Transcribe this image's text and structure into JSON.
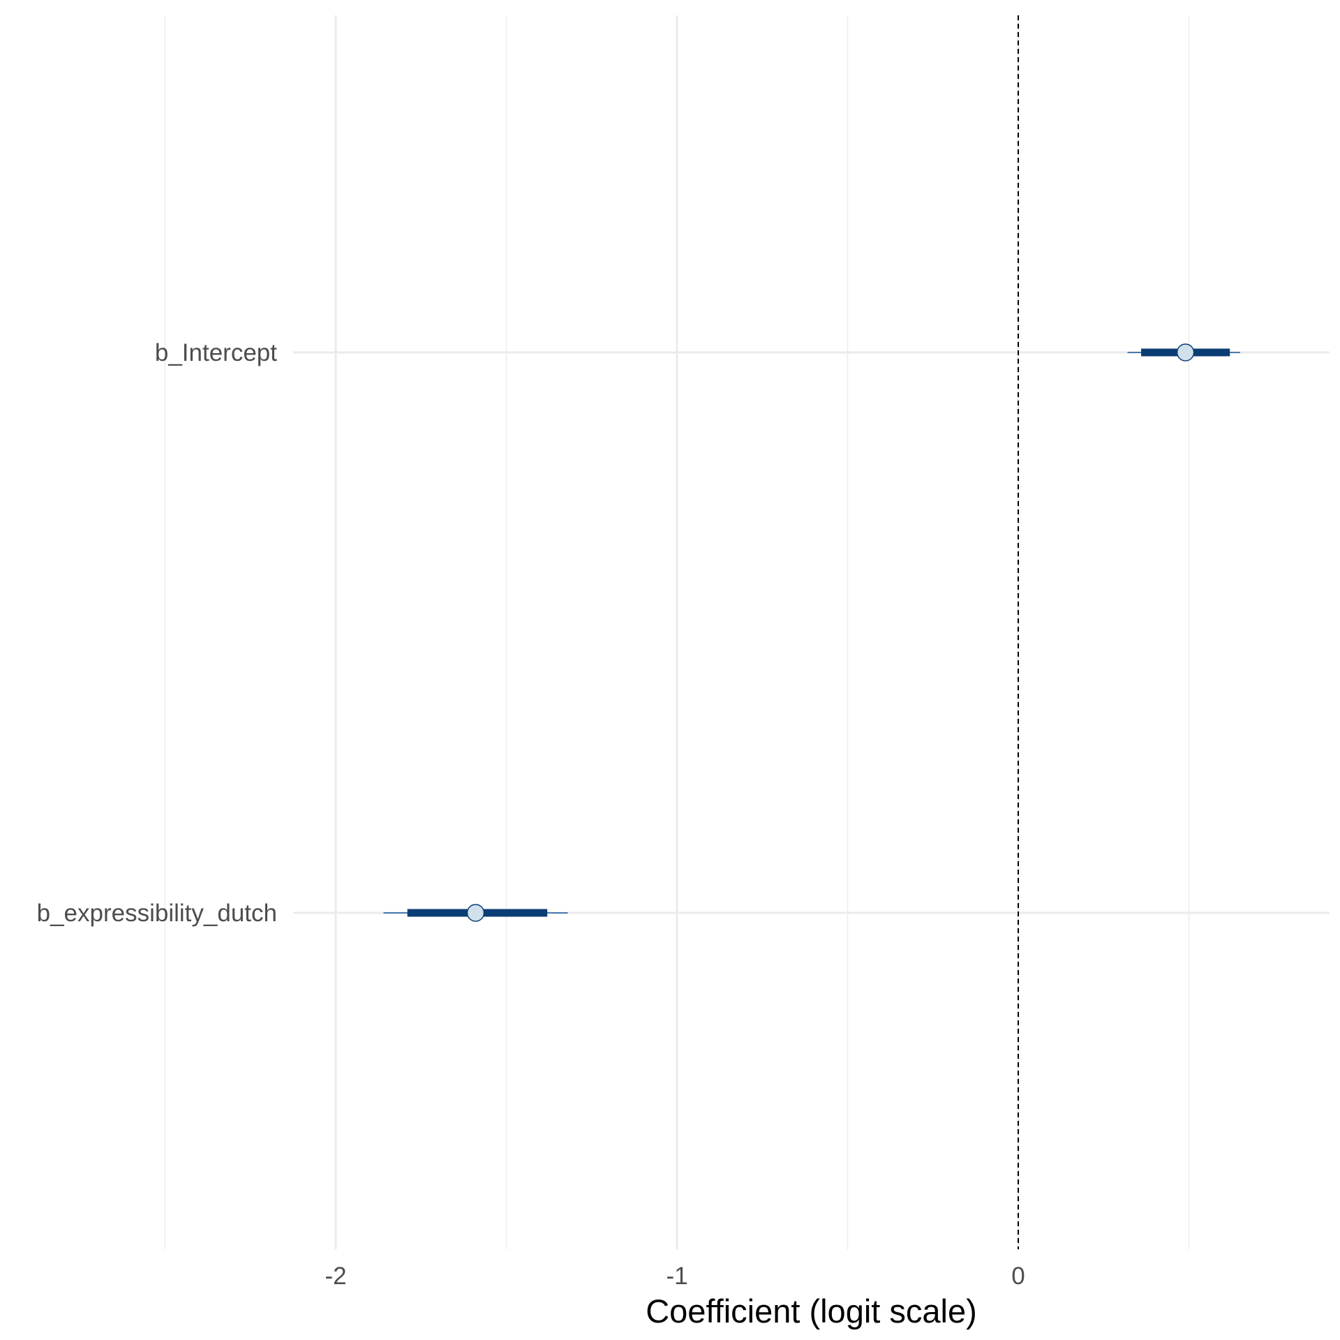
{
  "chart_data": {
    "type": "interval",
    "title": "",
    "xlabel": "Coefficient (logit scale)",
    "ylabel": "",
    "x_ticks": [
      -2,
      -1,
      0
    ],
    "x_tick_labels": [
      "-2",
      "-1",
      "0"
    ],
    "xlim": [
      -2.95,
      0.92
    ],
    "grid": true,
    "reference_line": {
      "x": 0,
      "style": "dashed",
      "color": "#000000"
    },
    "colors": {
      "inner_interval": "#0b3d75",
      "outer_interval": "#4a7ab0",
      "point_fill": "#d1e1ec",
      "point_stroke": "#0b3d75",
      "grid": "#ebebeb"
    },
    "parameters": [
      {
        "name": "b_Intercept",
        "estimate": 0.49,
        "inner": [
          0.36,
          0.62
        ],
        "outer": [
          0.32,
          0.65
        ]
      },
      {
        "name": "b_expressibility_dutch",
        "estimate": -1.59,
        "inner": [
          -1.79,
          -1.38
        ],
        "outer": [
          -1.86,
          -1.32
        ]
      }
    ]
  }
}
